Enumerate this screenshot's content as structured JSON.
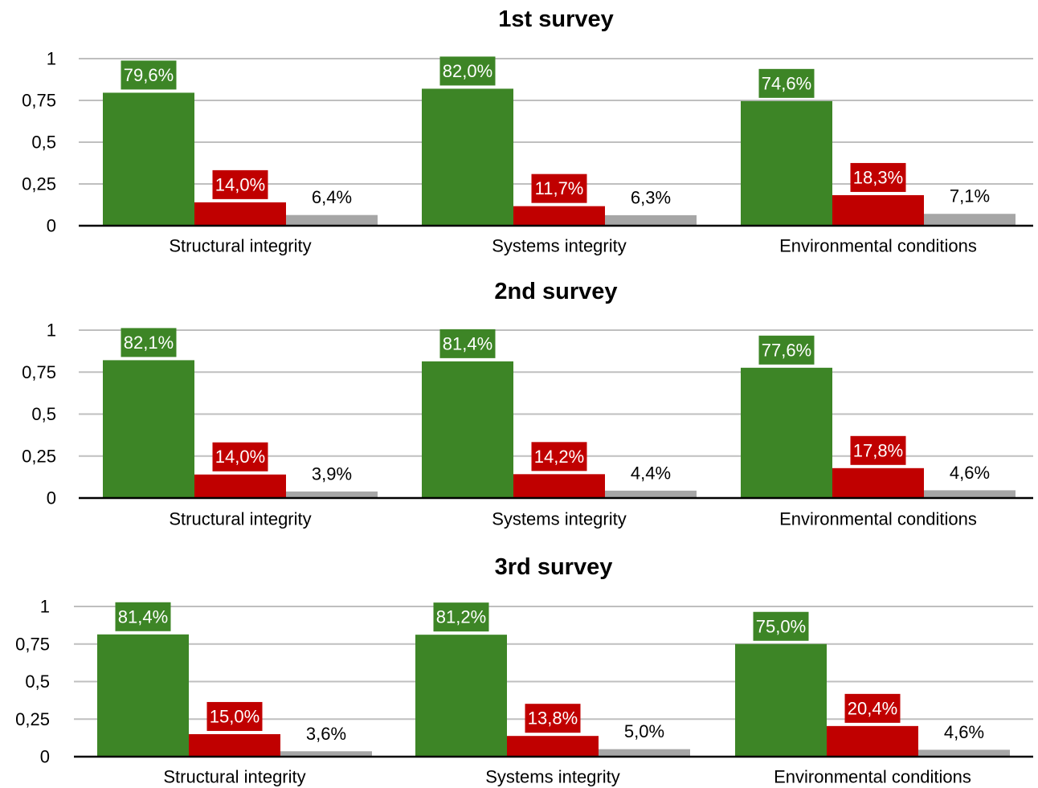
{
  "chart_data": [
    {
      "type": "bar",
      "title": "1st survey",
      "categories": [
        "Structural integrity",
        "Systems integrity",
        "Environmental conditions"
      ],
      "series": [
        {
          "values": [
            0.796,
            0.82,
            0.746
          ],
          "labels": [
            "79,6%",
            "82,0%",
            "74,6%"
          ],
          "color": "#3d8526"
        },
        {
          "values": [
            0.14,
            0.117,
            0.183
          ],
          "labels": [
            "14,0%",
            "11,7%",
            "18,3%"
          ],
          "color": "#c00000"
        },
        {
          "values": [
            0.064,
            0.063,
            0.071
          ],
          "labels": [
            "6,4%",
            "6,3%",
            "7,1%"
          ],
          "color": "#a6a6a6"
        }
      ],
      "yticks": [
        "0",
        "0,25",
        "0,5",
        "0,75",
        "1"
      ],
      "ylim": [
        0,
        1
      ],
      "grid": true
    },
    {
      "type": "bar",
      "title": "2nd survey",
      "categories": [
        "Structural integrity",
        "Systems integrity",
        "Environmental conditions"
      ],
      "series": [
        {
          "values": [
            0.821,
            0.814,
            0.776
          ],
          "labels": [
            "82,1%",
            "81,4%",
            "77,6%"
          ],
          "color": "#3d8526"
        },
        {
          "values": [
            0.14,
            0.142,
            0.178
          ],
          "labels": [
            "14,0%",
            "14,2%",
            "17,8%"
          ],
          "color": "#c00000"
        },
        {
          "values": [
            0.039,
            0.044,
            0.046
          ],
          "labels": [
            "3,9%",
            "4,4%",
            "4,6%"
          ],
          "color": "#a6a6a6"
        }
      ],
      "yticks": [
        "0",
        "0,25",
        "0,5",
        "0,75",
        "1"
      ],
      "ylim": [
        0,
        1
      ],
      "grid": true
    },
    {
      "type": "bar",
      "title": "3rd survey",
      "categories": [
        "Structural integrity",
        "Systems integrity",
        "Environmental conditions"
      ],
      "series": [
        {
          "values": [
            0.814,
            0.812,
            0.75
          ],
          "labels": [
            "81,4%",
            "81,2%",
            "75,0%"
          ],
          "color": "#3d8526"
        },
        {
          "values": [
            0.15,
            0.138,
            0.204
          ],
          "labels": [
            "15,0%",
            "13,8%",
            "20,4%"
          ],
          "color": "#c00000"
        },
        {
          "values": [
            0.036,
            0.05,
            0.046
          ],
          "labels": [
            "3,6%",
            "5,0%",
            "4,6%"
          ],
          "color": "#a6a6a6"
        }
      ],
      "yticks": [
        "0",
        "0,25",
        "0,5",
        "0,75",
        "1"
      ],
      "ylim": [
        0,
        1
      ],
      "grid": true
    }
  ]
}
